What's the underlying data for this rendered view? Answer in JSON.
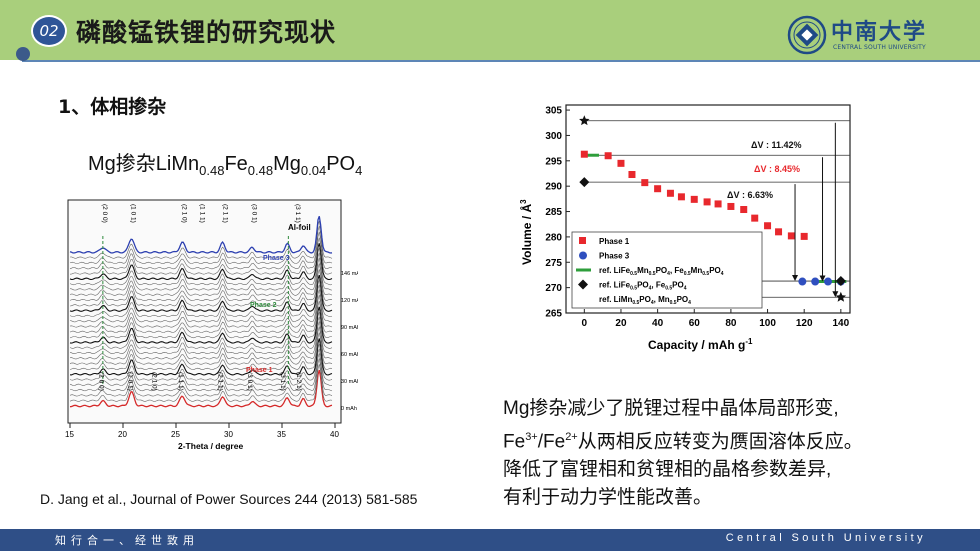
{
  "header": {
    "section_number": "02",
    "title": "磷酸锰铁锂的研究现状"
  },
  "logo": {
    "name_cn": "中南大学",
    "name_en": "CENTRAL SOUTH UNIVERSITY"
  },
  "subheading": "1、体相掺杂",
  "formula": {
    "prefix": "Mg掺杂LiMn",
    "mn": "0.48",
    "fe_txt": "Fe",
    "fe": "0.48",
    "mg_txt": "Mg",
    "mg": "0.04",
    "po": "PO",
    "po4": "4"
  },
  "xrd": {
    "xticks": [
      "15",
      "20",
      "25",
      "30",
      "35",
      "40"
    ],
    "xlabel": "2-Theta / degree",
    "al_foil": "Al-foil",
    "phase3": "Phase 3",
    "phase2": "Phase 2",
    "phase1": "Phase 1",
    "capacities": [
      "146 mAh g",
      "120 mAh g",
      "90 mAh g",
      "60 mAh g",
      "30 mAh g",
      "0 mAh g"
    ],
    "top_hkl": [
      "(2 0 0)",
      "(1 0 1)",
      "(2 1 0)",
      "(1 1 1)",
      "(2 1 1)",
      "(3 0 1)",
      "(3 1 1)"
    ],
    "bottom_hkl": [
      "(2 0 0)",
      "(1 0 1)",
      "(2 1 0)",
      "(1 1 1)",
      "(2 1 1)",
      "(3 0 1)",
      "(3 1 1)",
      "(1 2 1)"
    ]
  },
  "chart_data": {
    "type": "scatter",
    "xlabel": "Capacity / mAh g",
    "xlabel_sup": "-1",
    "ylabel": "Volume / Å",
    "ylabel_sup": "3",
    "xlim": [
      -10,
      145
    ],
    "ylim": [
      265,
      306
    ],
    "xticks": [
      0,
      20,
      40,
      60,
      80,
      100,
      120,
      140
    ],
    "yticks": [
      265,
      270,
      275,
      280,
      285,
      290,
      295,
      300,
      305
    ],
    "series": [
      {
        "name": "Phase 1",
        "marker": "square",
        "color": "#e8282d",
        "x": [
          0,
          13,
          20,
          26,
          33,
          40,
          47,
          53,
          60,
          67,
          73,
          80,
          87,
          93,
          100,
          106,
          113,
          120
        ],
        "y": [
          296.3,
          296.0,
          294.5,
          292.3,
          290.7,
          289.5,
          288.6,
          287.9,
          287.4,
          286.9,
          286.5,
          286.0,
          285.4,
          283.7,
          282.2,
          281.0,
          280.2,
          280.1
        ]
      },
      {
        "name": "Phase 3",
        "marker": "circle",
        "color": "#2f4fbf",
        "x": [
          119,
          126,
          133,
          140
        ],
        "y": [
          271.2,
          271.2,
          271.2,
          271.2
        ]
      },
      {
        "name": "ref. LiFe0.5Mn0.5PO4, Fe0.5Mn0.5PO4",
        "marker": "line",
        "color": "#2e9e3b",
        "x": [
          0,
          0,
          140,
          140
        ],
        "y": [
          296.1,
          296.1,
          271.2,
          271.2
        ]
      },
      {
        "name": "ref. LiFe0.5PO4, Fe0.5PO4",
        "marker": "diamond",
        "color": "#111111",
        "x": [
          0,
          140
        ],
        "y": [
          290.8,
          271.3
        ]
      },
      {
        "name": "ref. LiMn0.5PO4, Mn0.5PO4",
        "marker": "star",
        "color": "#111111",
        "x": [
          0,
          140
        ],
        "y": [
          302.9,
          268.1
        ]
      }
    ],
    "legend": {
      "position": "bottom-left",
      "entries": [
        "Phase 1",
        "Phase 3",
        "ref. LiFe0.5Mn0.5PO4, Fe0.5Mn0.5PO4",
        "ref. LiFe0.5PO4, Fe0.5PO4",
        "ref. LiMn0.5PO4, Mn0.5PO4"
      ]
    },
    "annotations": [
      {
        "text": "ΔV : 11.42%",
        "color": "#111111"
      },
      {
        "text": "ΔV : 8.45%",
        "color": "#e8282d"
      },
      {
        "text": "ΔV : 6.63%",
        "color": "#111111"
      }
    ]
  },
  "paragraph": {
    "line1": "Mg掺杂减少了脱锂过程中晶体局部形变,",
    "line2a": "Fe",
    "line2b": "3+",
    "line2c": "/Fe",
    "line2d": "2+",
    "line2e": "从两相反应转变为赝固溶体反应。",
    "line3": "降低了富锂相和贫锂相的晶格参数差异,",
    "line4": "有利于动力学性能改善。"
  },
  "citation": "D. Jang et al., Journal of Power Sources 244 (2013) 581-585",
  "footer": {
    "motto": "知行合一、经世致用",
    "english": "Central South University"
  },
  "colors": {
    "header_green": "#a9cf7c",
    "footer_blue": "#2f4f87",
    "badge_blue": "#2f5597",
    "accent_red": "#e8282d"
  }
}
